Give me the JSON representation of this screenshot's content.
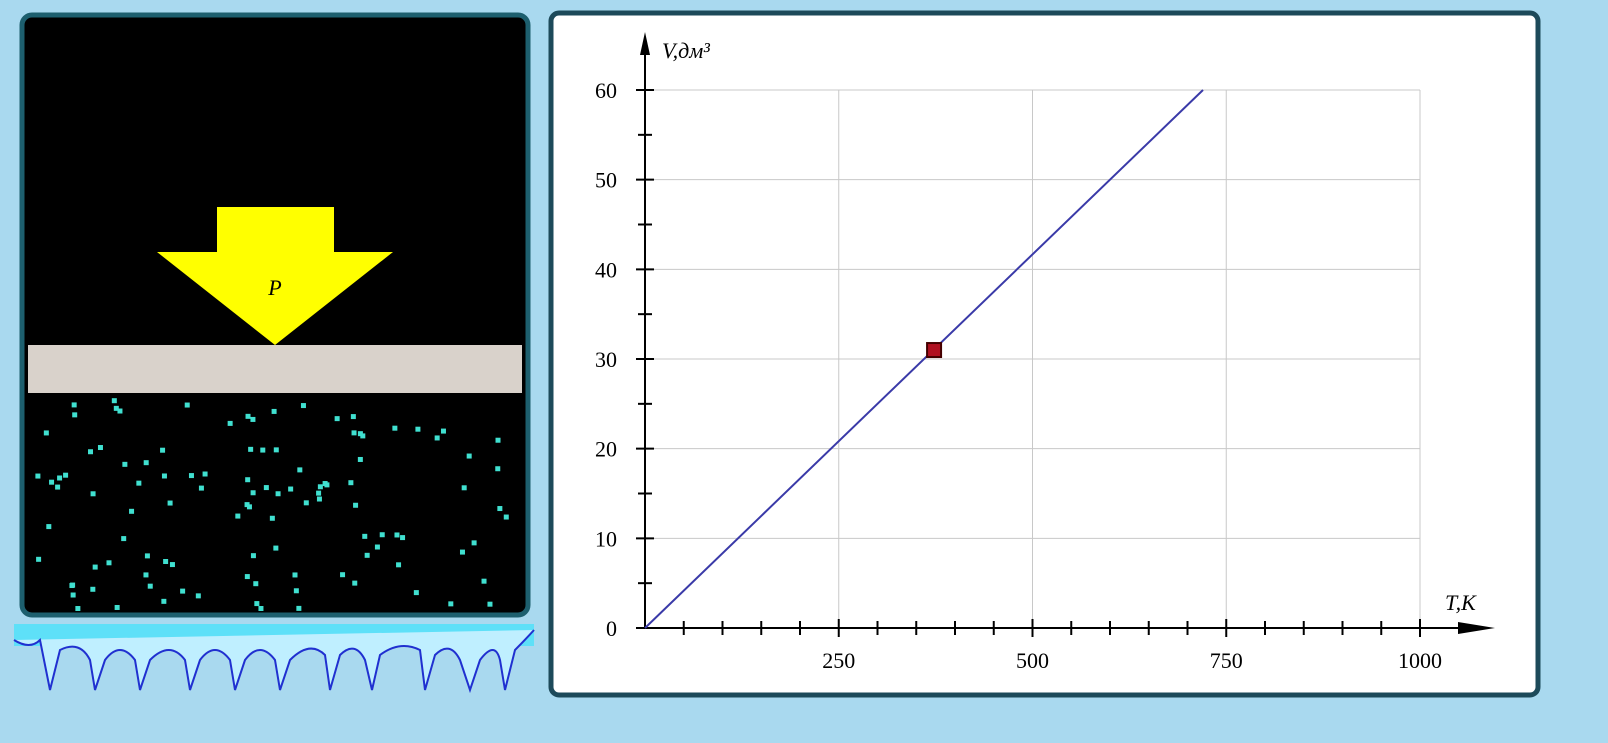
{
  "panel": {
    "arrow_label": "P"
  },
  "chart_data": {
    "type": "line",
    "x_label": "T,K",
    "y_label": "V,дм³",
    "xlim": [
      0,
      1000
    ],
    "ylim": [
      0,
      60
    ],
    "xticks": [
      250,
      500,
      750,
      1000
    ],
    "yticks": [
      0,
      10,
      20,
      30,
      40,
      50,
      60
    ],
    "grid": true,
    "series": [
      {
        "color": "#3a3aa8",
        "x": [
          0,
          720
        ],
        "values": [
          0,
          60
        ]
      }
    ],
    "marker": {
      "color": "#b01020",
      "x": 373,
      "y": 31
    }
  }
}
